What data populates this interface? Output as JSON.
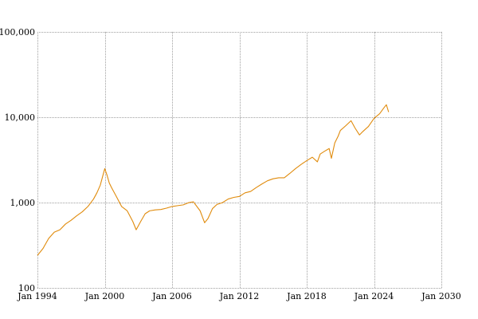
{
  "chart_data": {
    "type": "line",
    "title": "",
    "xlabel": "",
    "ylabel": "",
    "y_scale": "log",
    "grid": true,
    "legend": "none",
    "xlim": [
      1994.0,
      2030.0
    ],
    "ylim": [
      100,
      100000
    ],
    "x_ticks": [
      {
        "value": 1994,
        "label": "Jan 1994"
      },
      {
        "value": 2000,
        "label": "Jan 2000"
      },
      {
        "value": 2006,
        "label": "Jan 2006"
      },
      {
        "value": 2012,
        "label": "Jan 2012"
      },
      {
        "value": 2018,
        "label": "Jan 2018"
      },
      {
        "value": 2024,
        "label": "Jan 2024"
      },
      {
        "value": 2030,
        "label": "Jan 2030"
      }
    ],
    "y_ticks": [
      {
        "value": 100,
        "label": "100"
      },
      {
        "value": 1000,
        "label": "1,000"
      },
      {
        "value": 10000,
        "label": "10,000"
      },
      {
        "value": 100000,
        "label": "100,000"
      }
    ],
    "series": [
      {
        "color": "#e08b0c",
        "x": [
          1994.0,
          1994.5,
          1995.0,
          1995.5,
          1996.0,
          1996.5,
          1997.0,
          1997.5,
          1998.0,
          1998.5,
          1999.0,
          1999.3,
          1999.6,
          2000.0,
          2000.2,
          2000.4,
          2000.6,
          2001.0,
          2001.5,
          2002.0,
          2002.5,
          2002.8,
          2003.2,
          2003.6,
          2004.0,
          2004.5,
          2005.0,
          2005.5,
          2006.0,
          2006.5,
          2007.0,
          2007.5,
          2007.9,
          2008.5,
          2008.9,
          2009.2,
          2009.6,
          2010.0,
          2010.5,
          2011.0,
          2011.5,
          2012.0,
          2012.5,
          2013.0,
          2013.5,
          2014.0,
          2014.5,
          2015.0,
          2015.5,
          2016.0,
          2016.5,
          2017.0,
          2017.5,
          2018.0,
          2018.5,
          2018.95,
          2019.2,
          2019.6,
          2020.0,
          2020.2,
          2020.5,
          2020.8,
          2021.0,
          2021.5,
          2021.95,
          2022.3,
          2022.7,
          2023.0,
          2023.5,
          2024.0,
          2024.5,
          2024.9,
          2025.1,
          2025.3
        ],
        "y": [
          240,
          290,
          380,
          450,
          480,
          560,
          620,
          700,
          780,
          900,
          1100,
          1300,
          1600,
          2500,
          2100,
          1700,
          1500,
          1200,
          900,
          800,
          600,
          480,
          600,
          740,
          800,
          820,
          830,
          860,
          900,
          920,
          940,
          1000,
          1020,
          800,
          580,
          650,
          850,
          950,
          1000,
          1100,
          1150,
          1180,
          1300,
          1350,
          1500,
          1650,
          1800,
          1900,
          1950,
          1950,
          2200,
          2500,
          2800,
          3100,
          3400,
          3000,
          3700,
          4000,
          4300,
          3300,
          5000,
          6000,
          7000,
          8000,
          9100,
          7500,
          6200,
          6800,
          7800,
          9700,
          11000,
          13000,
          14000,
          11500
        ]
      }
    ]
  }
}
